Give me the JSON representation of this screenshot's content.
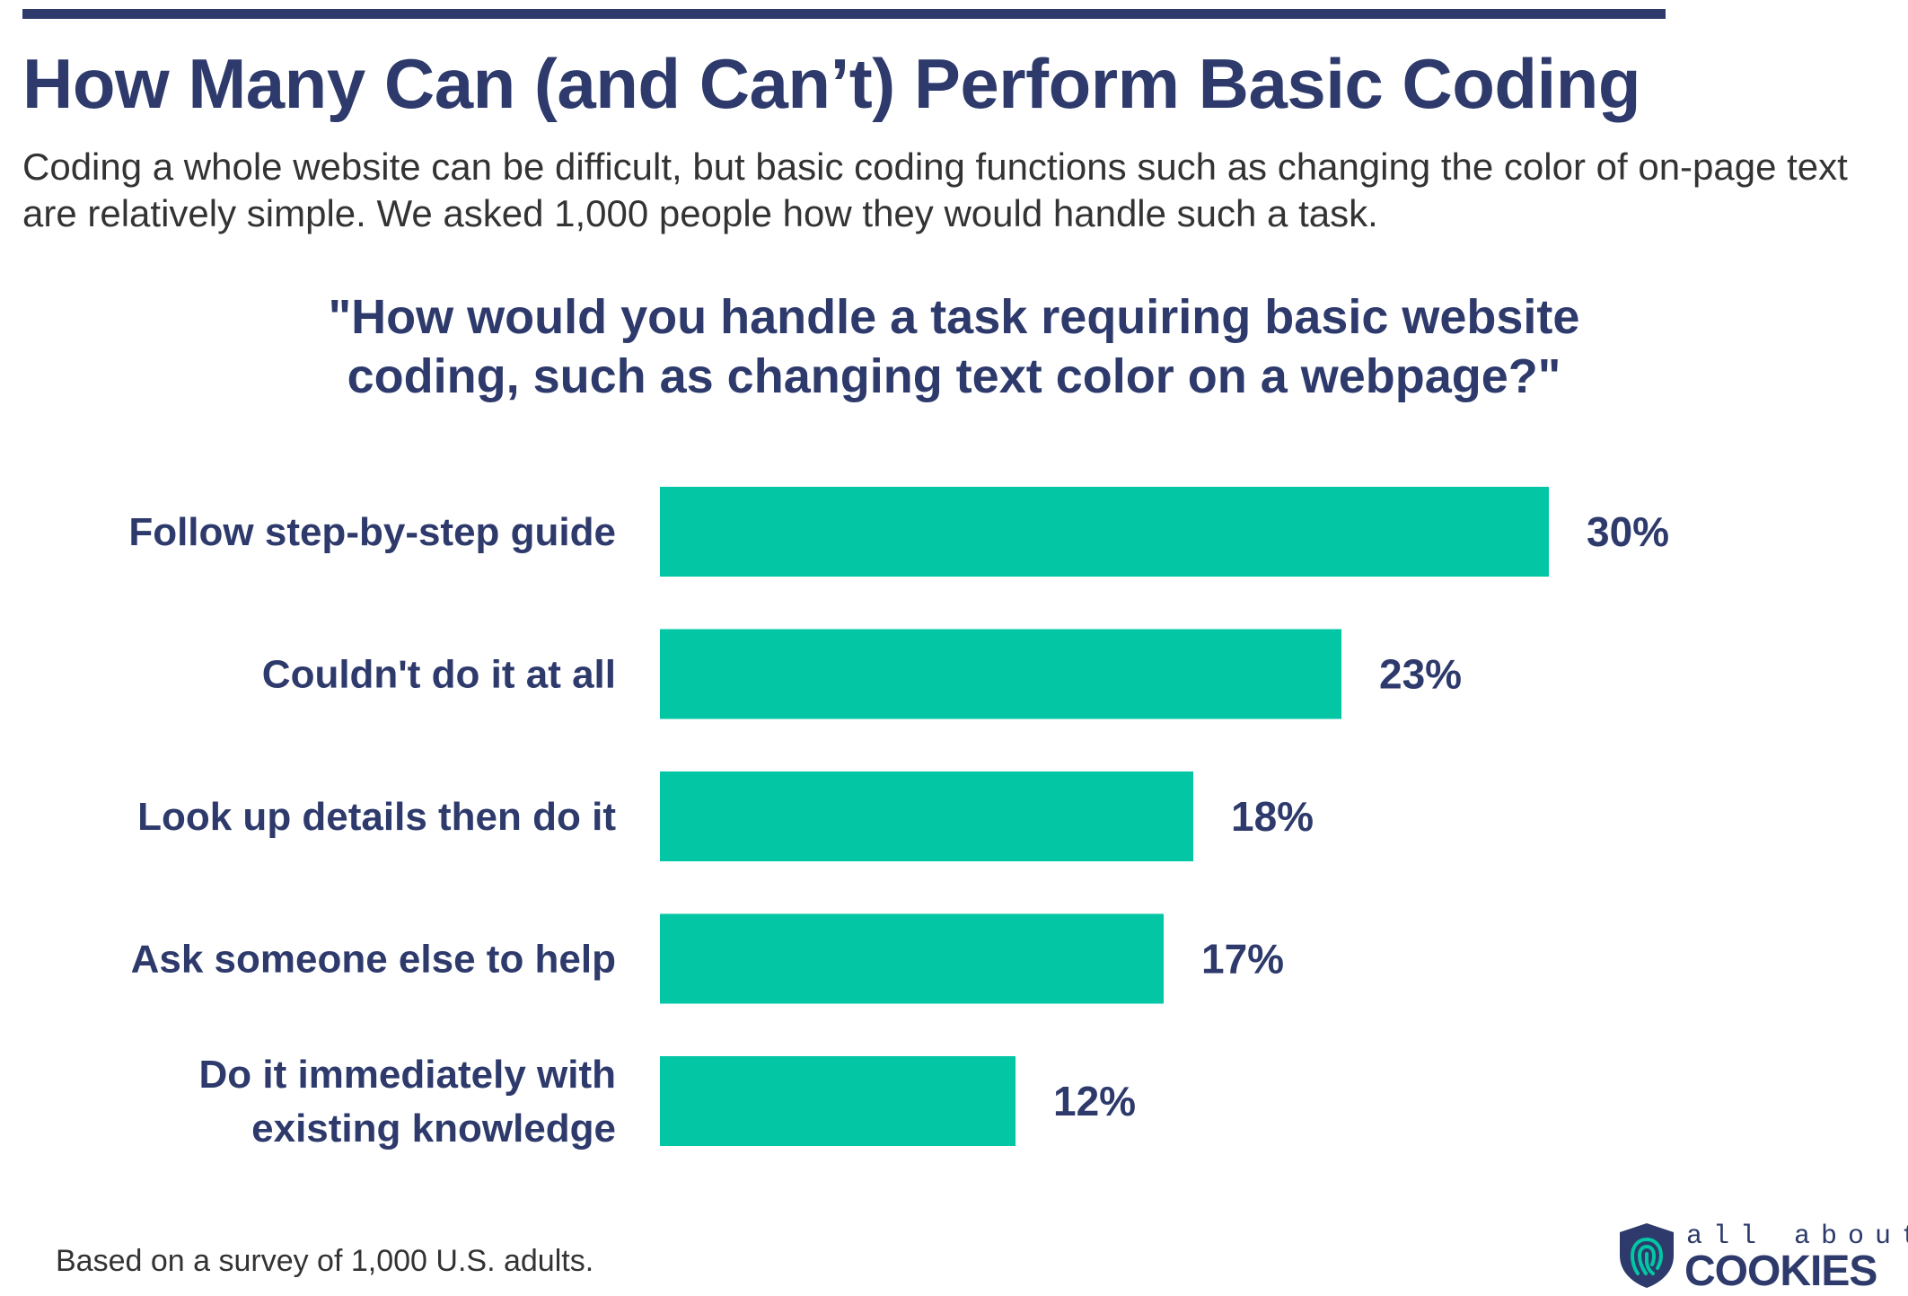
{
  "header": {
    "title": "How Many Can (and Can’t) Perform Basic Coding",
    "subtitle": "Coding a whole website can be difficult, but basic coding functions such as changing the color of on-page text are relatively simple. We asked 1,000 people how they would handle such a task.",
    "question_line1": "\"How would you handle a task requiring basic website",
    "question_line2": "coding, such as changing text color on a webpage?\""
  },
  "footer": {
    "note": "Based on a survey of 1,000 U.S. adults.",
    "logo_small": "all about",
    "logo_big": "COOKIES"
  },
  "colors": {
    "bar": "#03c6a4",
    "text_primary": "#2d3a6b"
  },
  "chart_data": {
    "type": "bar",
    "orientation": "horizontal",
    "title": "\"How would you handle a task requiring basic website coding, such as changing text color on a webpage?\"",
    "categories": [
      [
        "Follow step-by-step guide"
      ],
      [
        "Couldn't do it at all"
      ],
      [
        "Look up details then do it"
      ],
      [
        "Ask someone else to help"
      ],
      [
        "Do it immediately with",
        "existing knowledge"
      ]
    ],
    "values": [
      30,
      23,
      18,
      17,
      12
    ],
    "value_labels": [
      "30%",
      "23%",
      "18%",
      "17%",
      "12%"
    ],
    "unit": "%",
    "xlim": [
      0,
      30
    ],
    "grid": false,
    "legend": "none"
  }
}
